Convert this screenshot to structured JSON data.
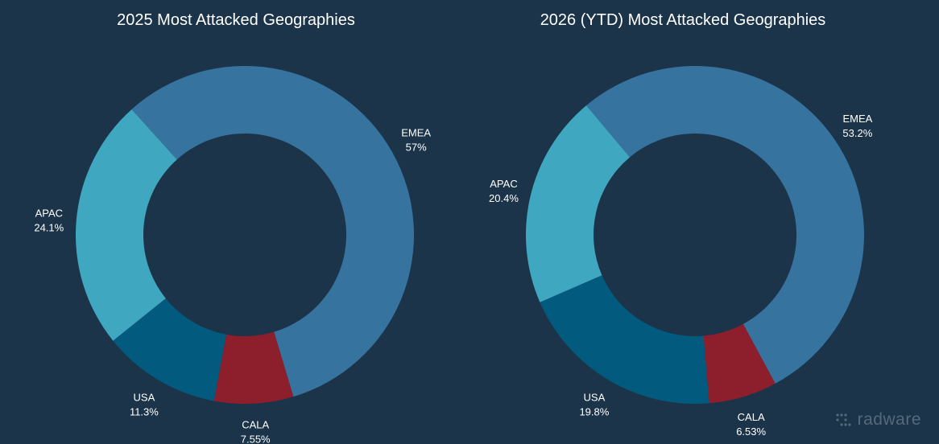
{
  "colors": {
    "background": "#1b3449",
    "EMEA": "#37739f",
    "APAC": "#40a7c0",
    "USA": "#035a7f",
    "CALA": "#8d1e2b"
  },
  "brand": {
    "logo_text": "radware",
    "icon": "radware-dots-icon"
  },
  "chart_data": [
    {
      "type": "pie",
      "title": "2025 Most Attacked Geographies",
      "donut": true,
      "categories": [
        "EMEA",
        "CALA",
        "USA",
        "APAC"
      ],
      "values": [
        57,
        7.55,
        11.3,
        24.1
      ],
      "labels": [
        "57%",
        "7.55%",
        "11.3%",
        "24.1%"
      ]
    },
    {
      "type": "pie",
      "title": "2026 (YTD) Most Attacked Geographies",
      "donut": true,
      "categories": [
        "EMEA",
        "CALA",
        "USA",
        "APAC"
      ],
      "values": [
        53.2,
        6.53,
        19.8,
        20.4
      ],
      "labels": [
        "53.2%",
        "6.53%",
        "19.8%",
        "20.4%"
      ]
    }
  ]
}
